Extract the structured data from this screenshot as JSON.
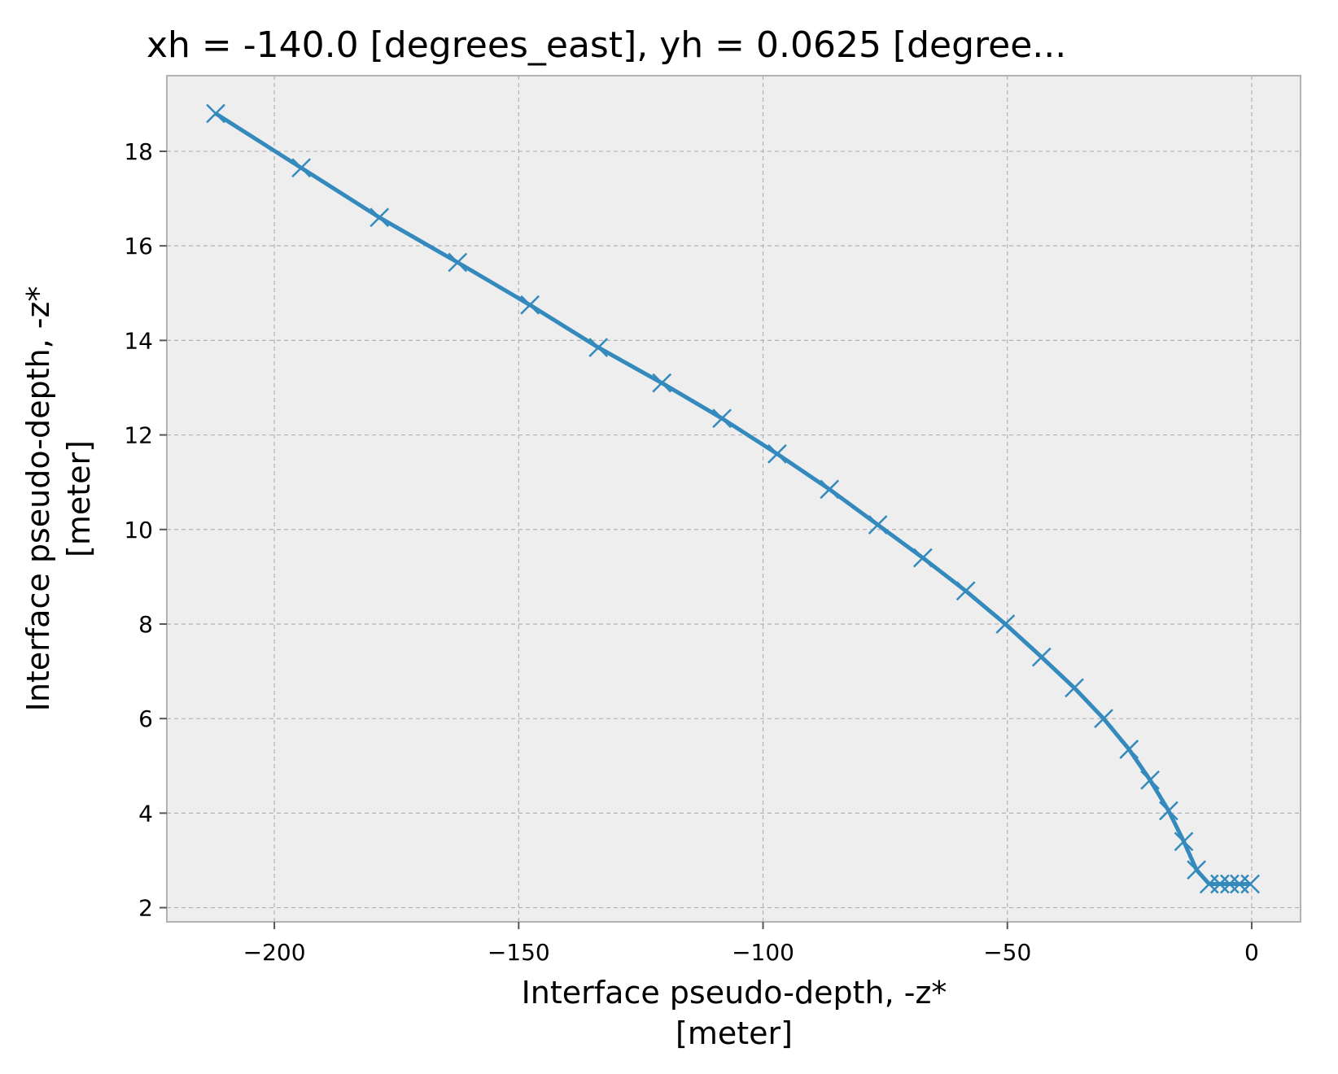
{
  "chart_data": {
    "type": "line",
    "title": "xh = -140.0 [degrees_east], yh = 0.0625 [degree...",
    "xlabel": "Interface pseudo-depth, -z*",
    "xunit": "[meter]",
    "ylabel": "Interface pseudo-depth, -z*",
    "yunit": "[meter]",
    "xlim": [
      -222,
      10
    ],
    "ylim": [
      1.7,
      19.6
    ],
    "xticks": [
      -200,
      -150,
      -100,
      -50,
      0
    ],
    "xtick_labels": [
      "−200",
      "−150",
      "−100",
      "−50",
      "0"
    ],
    "yticks": [
      2,
      4,
      6,
      8,
      10,
      12,
      14,
      16,
      18
    ],
    "ytick_labels": [
      "2",
      "4",
      "6",
      "8",
      "10",
      "12",
      "14",
      "16",
      "18"
    ],
    "grid": true,
    "marker": "x",
    "series": [
      {
        "color": "#348ABD",
        "x": [
          -212.0,
          -194.5,
          -178.5,
          -162.5,
          -147.7,
          -133.7,
          -120.7,
          -108.4,
          -97.1,
          -86.4,
          -76.5,
          -67.3,
          -58.5,
          -50.4,
          -43.0,
          -36.3,
          -30.3,
          -25.1,
          -20.8,
          -17.0,
          -13.9,
          -11.3,
          -8.7,
          -6.5,
          -4.5,
          -2.5,
          -0.3
        ],
        "y": [
          18.8,
          17.65,
          16.6,
          15.65,
          14.75,
          13.85,
          13.1,
          12.35,
          11.6,
          10.85,
          10.1,
          9.4,
          8.7,
          8.0,
          7.3,
          6.65,
          6.0,
          5.35,
          4.7,
          4.05,
          3.4,
          2.8,
          2.5,
          2.5,
          2.5,
          2.5,
          2.5
        ]
      }
    ]
  }
}
